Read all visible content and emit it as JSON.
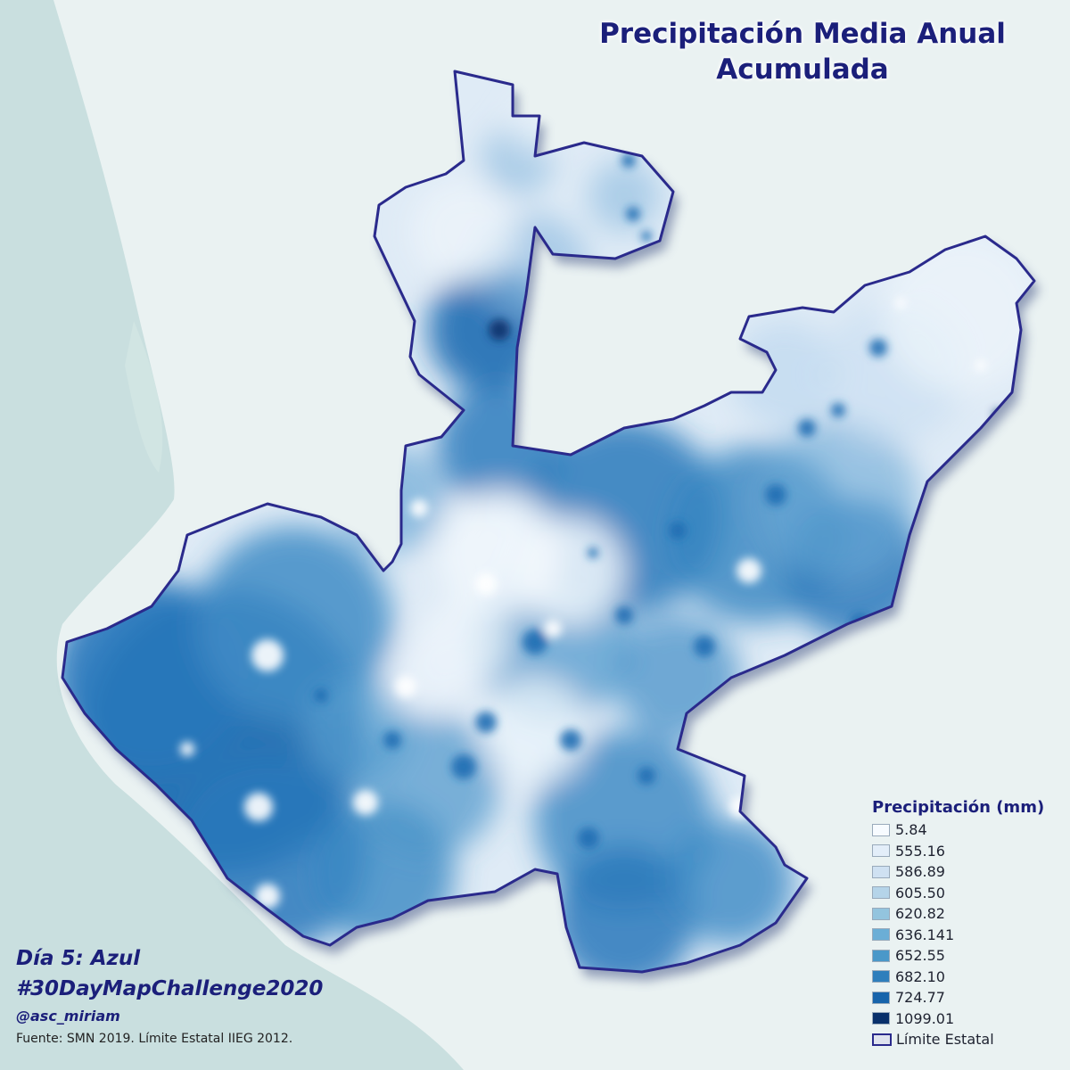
{
  "title": {
    "line1": "Precipitación Media Anual",
    "line2": "Acumulada"
  },
  "legend": {
    "title": "Precipitación (mm)",
    "classes": [
      {
        "label": "5.84",
        "color": "#f7fbff"
      },
      {
        "label": "555.16",
        "color": "#e3eef9"
      },
      {
        "label": "586.89",
        "color": "#cfe1f2"
      },
      {
        "label": "605.50",
        "color": "#b5d4e9"
      },
      {
        "label": "620.82",
        "color": "#93c4de"
      },
      {
        "label": "636.141",
        "color": "#6baed6"
      },
      {
        "label": "652.55",
        "color": "#4a98c9"
      },
      {
        "label": "682.10",
        "color": "#2e7ebc"
      },
      {
        "label": "724.77",
        "color": "#1764ab"
      },
      {
        "label": "1099.01",
        "color": "#08306b"
      }
    ],
    "boundary_label": "Límite Estatal",
    "boundary_color": "#2a2a8c"
  },
  "credits": {
    "day": "Día 5: Azul",
    "hashtag": "#30DayMapChallenge2020",
    "author": "@asc_miriam",
    "source": "Fuente: SMN 2019. Límite Estatal IIEG 2012."
  },
  "colors": {
    "ocean": "#c9dfdf",
    "land": "#eaf2f2",
    "state_fill_base": "#dfebf6",
    "title_text": "#1b1f7a"
  }
}
